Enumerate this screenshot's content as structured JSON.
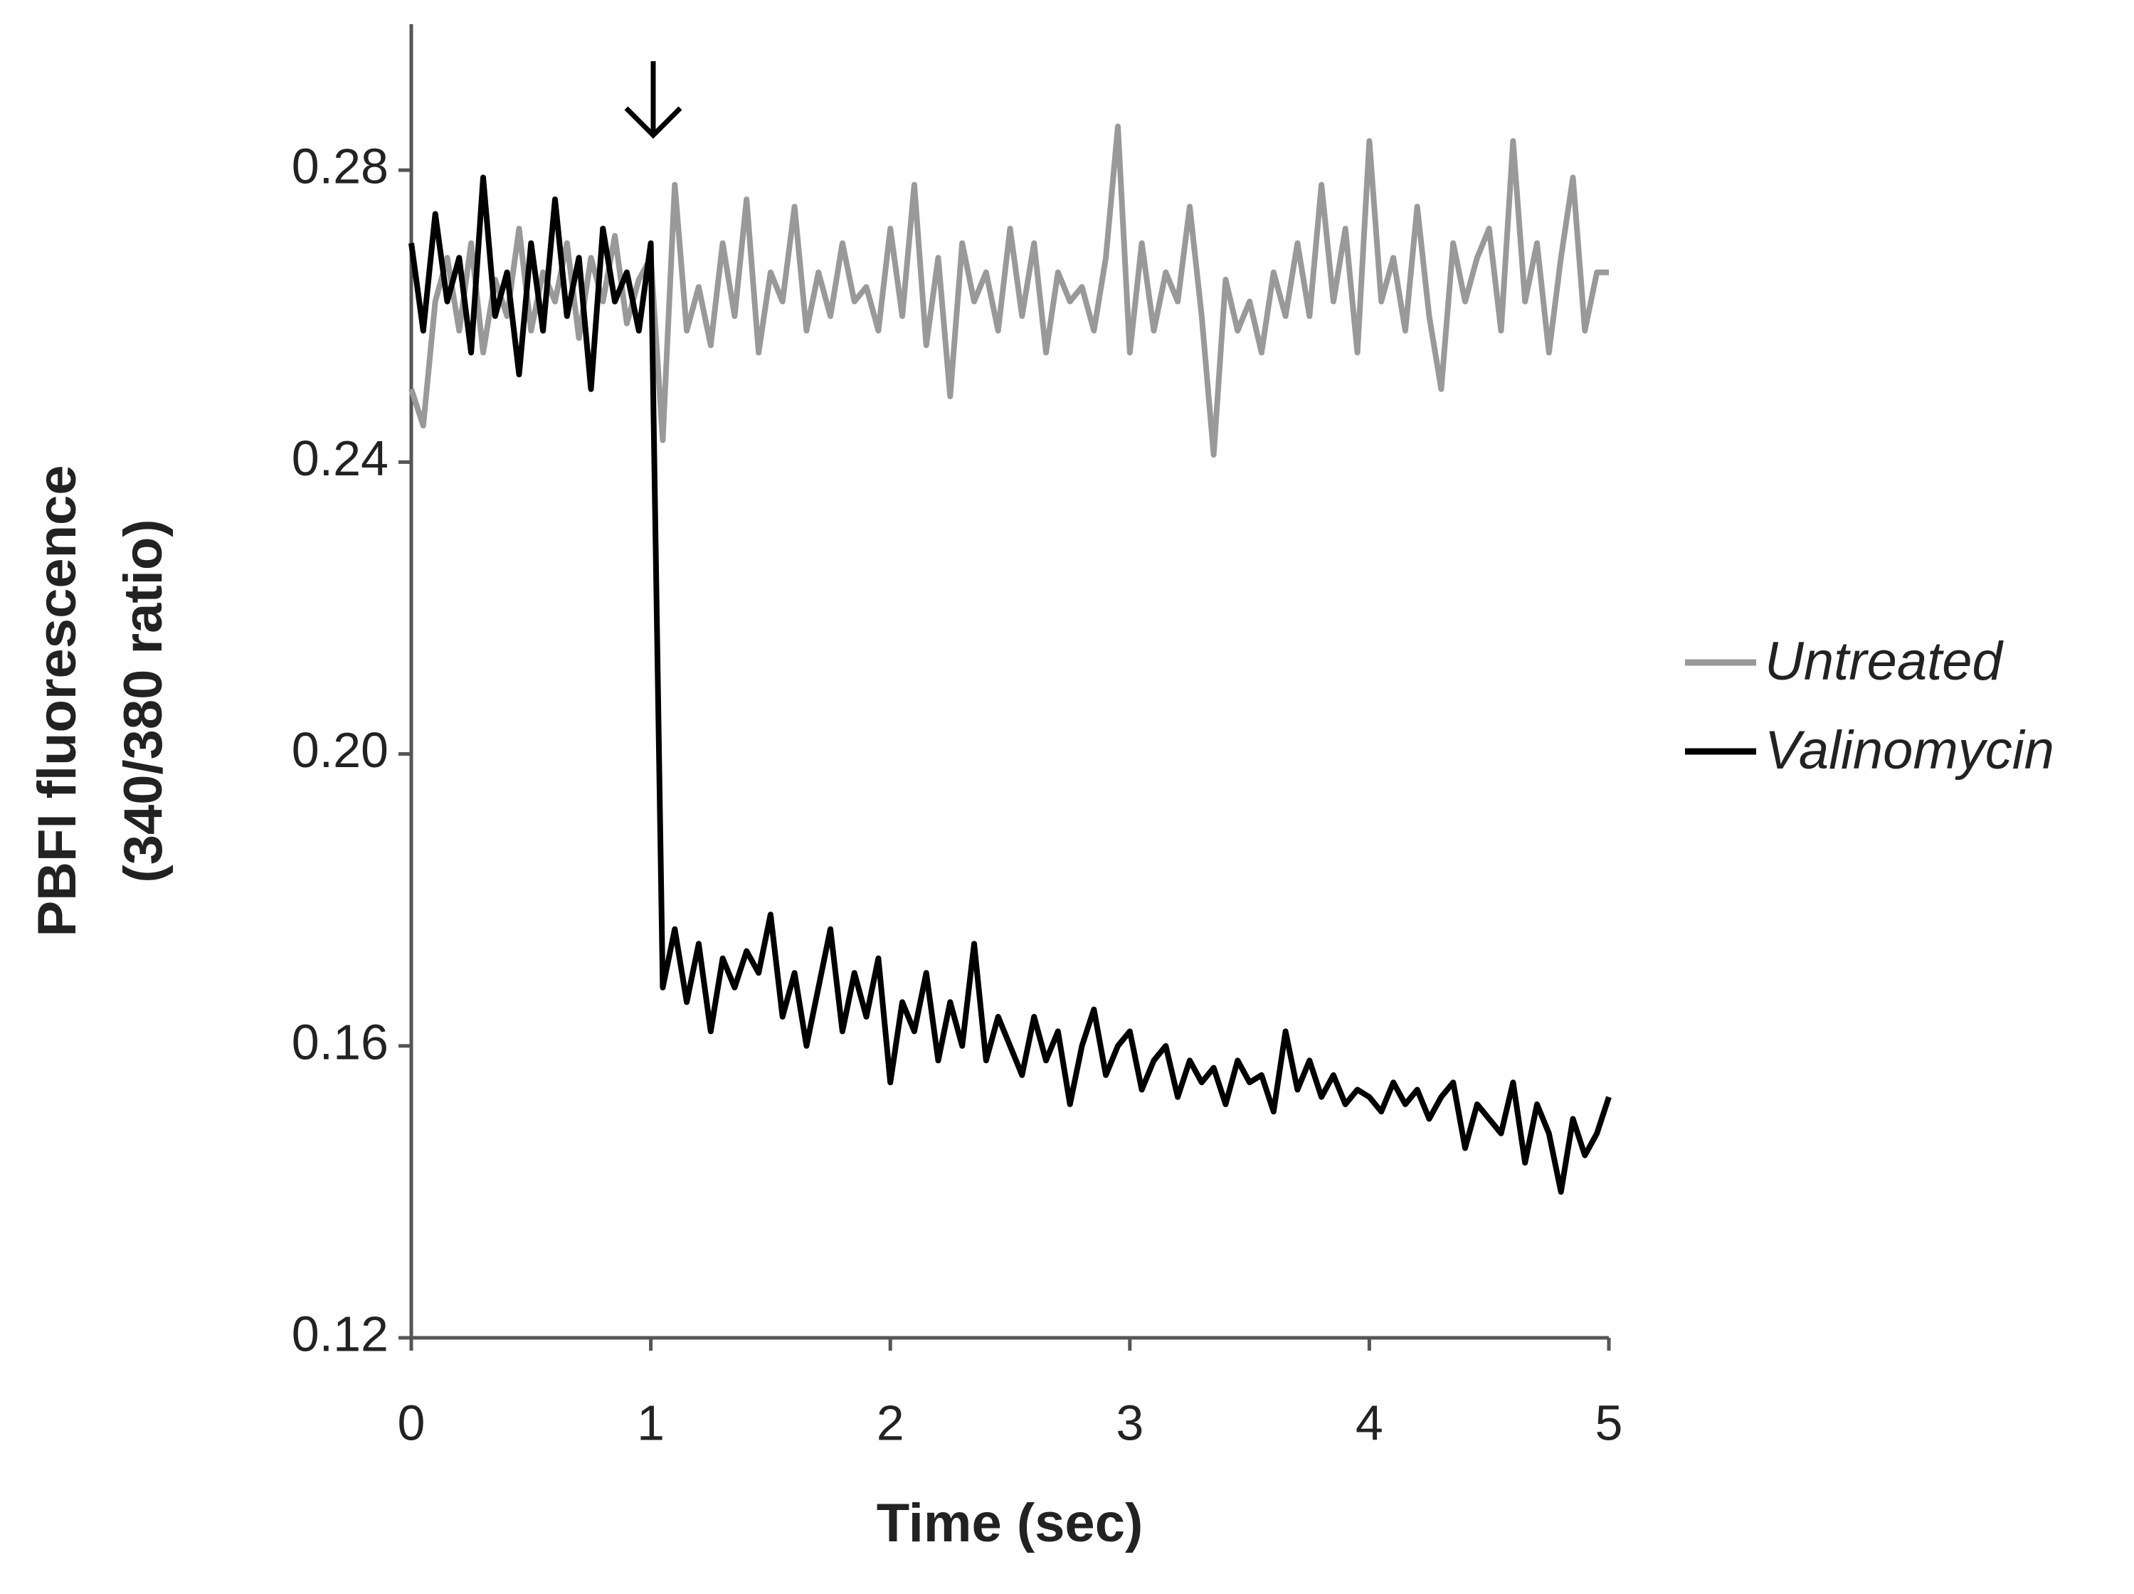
{
  "chart_data": {
    "type": "line",
    "xlabel": "Time (sec)",
    "ylabel": [
      "PBFI fluorescence",
      "(340/380 ratio)"
    ],
    "x": [
      0,
      0.05,
      0.1,
      0.15,
      0.2,
      0.25,
      0.3,
      0.35,
      0.4,
      0.45,
      0.5,
      0.55,
      0.6,
      0.65,
      0.7,
      0.75,
      0.8,
      0.85,
      0.9,
      0.95,
      1,
      1.05,
      1.1,
      1.15,
      1.2,
      1.25,
      1.3,
      1.35,
      1.4,
      1.45,
      1.5,
      1.55,
      1.6,
      1.65,
      1.7,
      1.75,
      1.8,
      1.85,
      1.9,
      1.95,
      2,
      2.05,
      2.1,
      2.15,
      2.2,
      2.25,
      2.3,
      2.35,
      2.4,
      2.45,
      2.5,
      2.55,
      2.6,
      2.65,
      2.7,
      2.75,
      2.8,
      2.85,
      2.9,
      2.95,
      3,
      3.05,
      3.1,
      3.15,
      3.2,
      3.25,
      3.3,
      3.35,
      3.4,
      3.45,
      3.5,
      3.55,
      3.6,
      3.65,
      3.7,
      3.75,
      3.8,
      3.85,
      3.9,
      3.95,
      4,
      4.05,
      4.1,
      4.15,
      4.2,
      4.25,
      4.3,
      4.35,
      4.4,
      4.45,
      4.5,
      4.55,
      4.6,
      4.65,
      4.7,
      4.75,
      4.8,
      4.85,
      4.9,
      4.95,
      5
    ],
    "series": [
      {
        "name": "Untreated",
        "color": "#999999",
        "values": [
          0.25,
          0.245,
          0.262,
          0.268,
          0.258,
          0.27,
          0.255,
          0.265,
          0.26,
          0.272,
          0.258,
          0.266,
          0.262,
          0.27,
          0.257,
          0.268,
          0.262,
          0.271,
          0.259,
          0.265,
          0.268,
          0.243,
          0.278,
          0.258,
          0.264,
          0.256,
          0.27,
          0.26,
          0.276,
          0.255,
          0.266,
          0.262,
          0.275,
          0.258,
          0.266,
          0.26,
          0.27,
          0.262,
          0.264,
          0.258,
          0.272,
          0.26,
          0.278,
          0.256,
          0.268,
          0.249,
          0.27,
          0.262,
          0.266,
          0.258,
          0.272,
          0.26,
          0.27,
          0.255,
          0.266,
          0.262,
          0.264,
          0.258,
          0.268,
          0.286,
          0.255,
          0.27,
          0.258,
          0.266,
          0.262,
          0.275,
          0.26,
          0.241,
          0.265,
          0.258,
          0.262,
          0.255,
          0.266,
          0.26,
          0.27,
          0.26,
          0.278,
          0.262,
          0.272,
          0.255,
          0.284,
          0.262,
          0.268,
          0.258,
          0.275,
          0.26,
          0.25,
          0.27,
          0.262,
          0.268,
          0.272,
          0.258,
          0.284,
          0.262,
          0.27,
          0.255,
          0.268,
          0.279,
          0.258,
          0.266,
          0.266
        ]
      },
      {
        "name": "Valinomycin",
        "color": "#000000",
        "values": [
          0.27,
          0.258,
          0.274,
          0.262,
          0.268,
          0.255,
          0.279,
          0.26,
          0.266,
          0.252,
          0.27,
          0.258,
          0.276,
          0.26,
          0.268,
          0.25,
          0.272,
          0.262,
          0.266,
          0.258,
          0.27,
          0.168,
          0.176,
          0.166,
          0.174,
          0.162,
          0.172,
          0.168,
          0.173,
          0.17,
          0.178,
          0.164,
          0.17,
          0.16,
          0.168,
          0.176,
          0.162,
          0.17,
          0.164,
          0.172,
          0.155,
          0.166,
          0.162,
          0.17,
          0.158,
          0.166,
          0.16,
          0.174,
          0.158,
          0.164,
          0.16,
          0.156,
          0.164,
          0.158,
          0.162,
          0.152,
          0.16,
          0.165,
          0.156,
          0.16,
          0.162,
          0.154,
          0.158,
          0.16,
          0.153,
          0.158,
          0.155,
          0.157,
          0.152,
          0.158,
          0.155,
          0.156,
          0.151,
          0.162,
          0.154,
          0.158,
          0.153,
          0.156,
          0.152,
          0.154,
          0.153,
          0.151,
          0.155,
          0.152,
          0.154,
          0.15,
          0.153,
          0.155,
          0.146,
          0.152,
          0.15,
          0.148,
          0.155,
          0.144,
          0.152,
          0.148,
          0.14,
          0.15,
          0.145,
          0.148,
          0.153
        ]
      }
    ],
    "xlim": [
      0,
      5
    ],
    "xticks": [
      0,
      1,
      2,
      3,
      4,
      5
    ],
    "ylim": [
      0.12,
      0.3
    ],
    "yticks": [
      0.12,
      0.16,
      {
        "value": 0.2,
        "label": "0.20"
      },
      0.24,
      0.28
    ],
    "legend": "right",
    "grid": false
  }
}
